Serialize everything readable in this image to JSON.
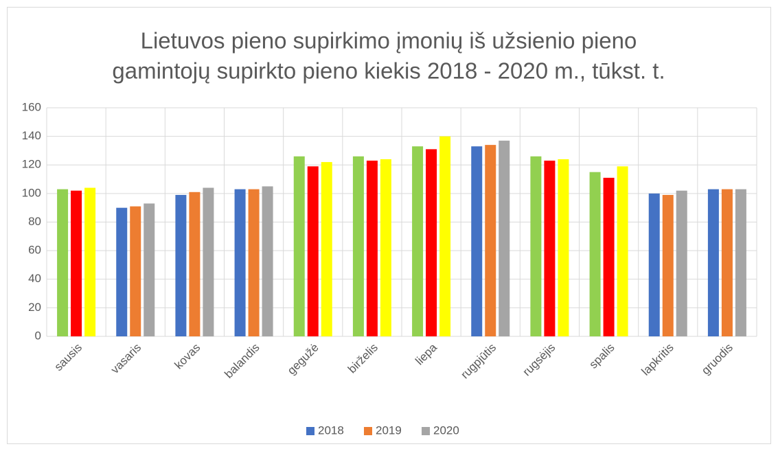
{
  "chart_data": {
    "type": "bar",
    "title": [
      "Lietuvos pieno supirkimo įmonių iš užsienio pieno",
      "gamintojų supirkto pieno kiekis 2018 - 2020 m., tūkst. t."
    ],
    "categories": [
      "sausis",
      "vasaris",
      "kovas",
      "balandis",
      "gegužė",
      "birželis",
      "liepa",
      "rugpjūtis",
      "rugsėjis",
      "spalis",
      "lapkritis",
      "gruodis"
    ],
    "series": [
      {
        "name": "2018",
        "color": "#4472c4",
        "point_colors": [
          "#92d050",
          "#4472c4",
          "#4472c4",
          "#4472c4",
          "#92d050",
          "#92d050",
          "#92d050",
          "#4472c4",
          "#92d050",
          "#92d050",
          "#4472c4",
          "#4472c4"
        ],
        "values": [
          103,
          90,
          99,
          103,
          126,
          126,
          133,
          133,
          126,
          115,
          100,
          103
        ]
      },
      {
        "name": "2019",
        "color": "#ed7d31",
        "point_colors": [
          "#ff0000",
          "#ed7d31",
          "#ed7d31",
          "#ed7d31",
          "#ff0000",
          "#ff0000",
          "#ff0000",
          "#ed7d31",
          "#ff0000",
          "#ff0000",
          "#ed7d31",
          "#ed7d31"
        ],
        "values": [
          102,
          91,
          101,
          103,
          119,
          123,
          131,
          134,
          123,
          111,
          99,
          103
        ]
      },
      {
        "name": "2020",
        "color": "#a5a5a5",
        "point_colors": [
          "#ffff00",
          "#a5a5a5",
          "#a5a5a5",
          "#a5a5a5",
          "#ffff00",
          "#ffff00",
          "#ffff00",
          "#a5a5a5",
          "#ffff00",
          "#ffff00",
          "#a5a5a5",
          "#a5a5a5"
        ],
        "values": [
          104,
          93,
          104,
          105,
          122,
          124,
          140,
          137,
          124,
          119,
          102,
          103
        ]
      }
    ],
    "ylim": [
      0,
      160
    ],
    "yticks": [
      0,
      20,
      40,
      60,
      80,
      100,
      120,
      140,
      160
    ],
    "grid": true,
    "legend": "bottom"
  }
}
